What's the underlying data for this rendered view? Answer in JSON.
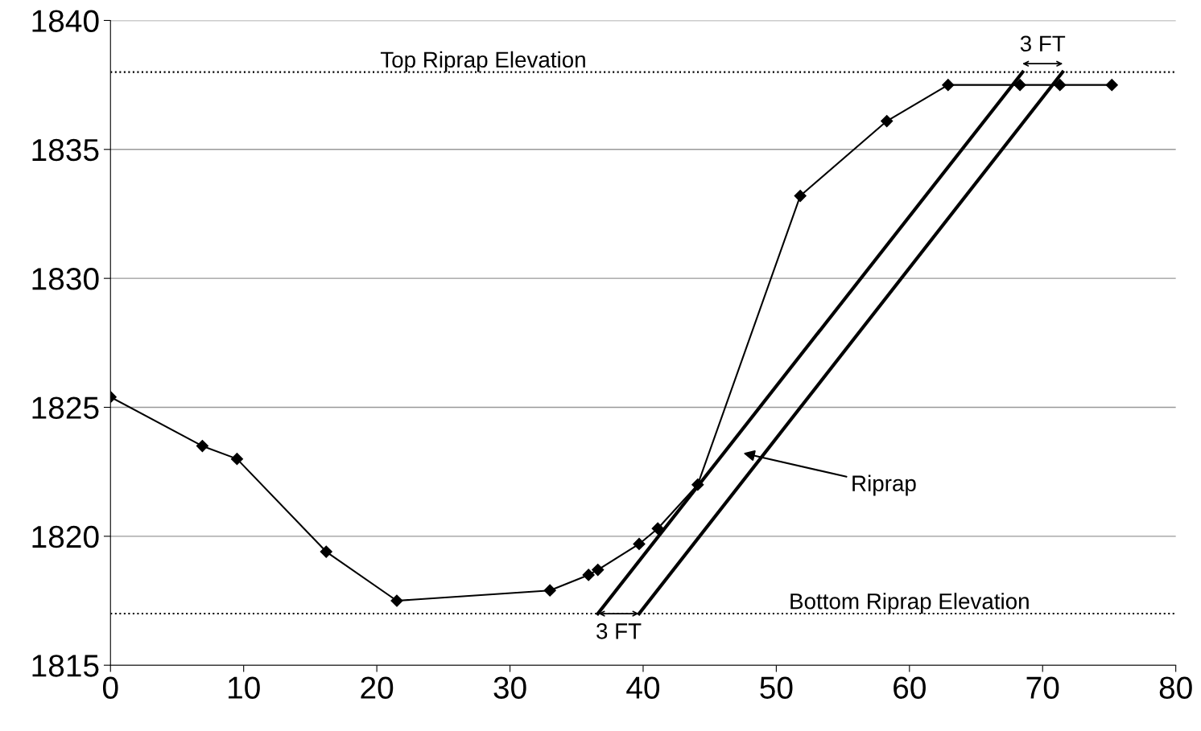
{
  "chart_data": {
    "type": "line",
    "xlim": [
      0,
      80
    ],
    "xticks": [
      0,
      10,
      20,
      30,
      40,
      50,
      60,
      70,
      80
    ],
    "ylim": [
      1815,
      1840
    ],
    "yticks": [
      1815,
      1820,
      1825,
      1830,
      1835,
      1840
    ],
    "grid": "y",
    "series": [
      {
        "color": "#000000",
        "marker": "diamond",
        "line_style": "solid",
        "x": [
          0,
          6.9,
          9.5,
          16.2,
          21.5,
          33.0,
          35.9,
          36.6,
          39.7,
          41.1,
          44.1,
          51.8,
          58.3,
          62.9,
          68.3,
          71.3,
          75.2
        ],
        "values": [
          1825.4,
          1823.5,
          1823.0,
          1819.4,
          1817.5,
          1817.9,
          1818.5,
          1818.7,
          1819.7,
          1820.3,
          1822.0,
          1833.2,
          1836.1,
          1837.5,
          1837.5,
          1837.5,
          1837.5
        ]
      },
      {
        "color": "#000000",
        "line_style": "solid",
        "x": [
          36.6,
          68.5
        ],
        "values": [
          1817.0,
          1838.0
        ]
      },
      {
        "color": "#000000",
        "line_style": "solid",
        "x": [
          39.7,
          71.5
        ],
        "values": [
          1817.0,
          1838.0
        ]
      }
    ],
    "ref_lines": [
      {
        "axis": "y",
        "value": 1838,
        "label": "Top Riprap Elevation",
        "color": "#000000",
        "line_style": "dotted"
      },
      {
        "axis": "y",
        "value": 1817,
        "label": "Bottom Riprap Elevation",
        "color": "#000000",
        "line_style": "dotted"
      }
    ],
    "annotations": [
      "Riprap",
      "3 FT",
      "3 FT"
    ]
  }
}
